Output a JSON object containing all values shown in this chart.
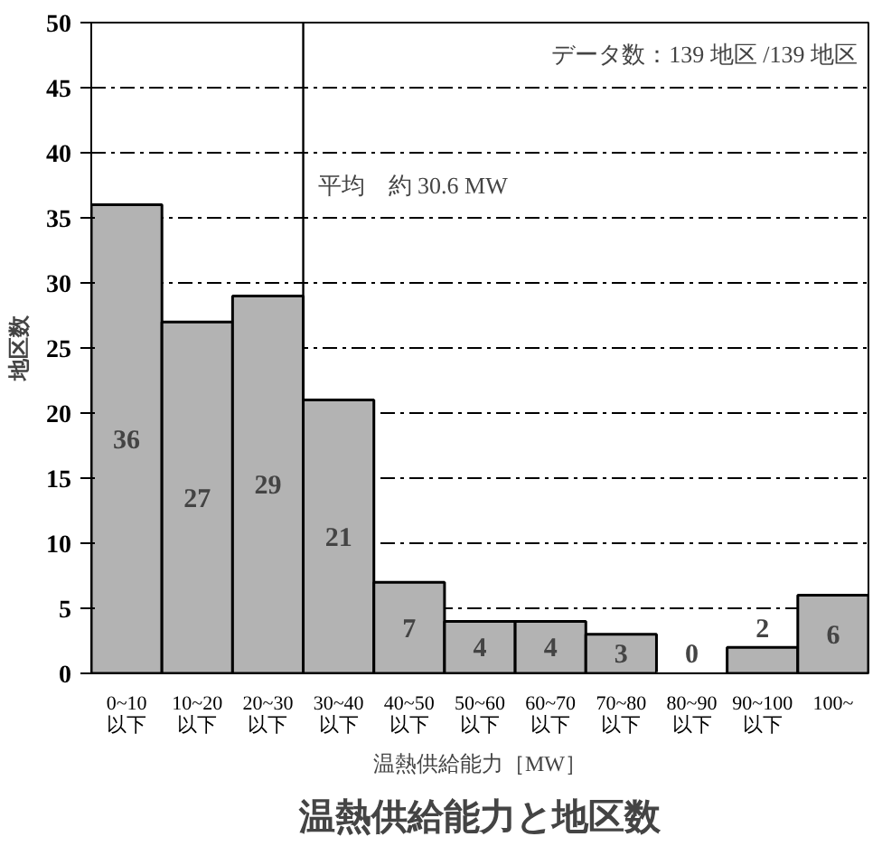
{
  "chart_data": {
    "type": "bar",
    "title": "温熱供給能力と地区数",
    "xlabel": "温熱供給能力［MW］",
    "ylabel": "地区数",
    "categories": [
      "0~10\n以下",
      "10~20\n以下",
      "20~30\n以下",
      "30~40\n以下",
      "40~50\n以下",
      "50~60\n以下",
      "60~70\n以下",
      "70~80\n以下",
      "80~90\n以下",
      "90~100\n以下",
      "100~"
    ],
    "values": [
      36,
      27,
      29,
      21,
      7,
      4,
      4,
      3,
      0,
      2,
      6
    ],
    "color": "#b3b3b3",
    "data_labels": true,
    "ylim": [
      0,
      50
    ],
    "yticks": [
      0,
      5,
      10,
      15,
      20,
      25,
      30,
      35,
      40,
      45,
      50
    ],
    "grid": "y",
    "ref_lines": [
      {
        "axis": "x",
        "value": "30~40\n以下",
        "label": "平均　約 30.6 MW"
      }
    ],
    "annotations": [
      "データ数：139 地区 /139 地区"
    ]
  }
}
